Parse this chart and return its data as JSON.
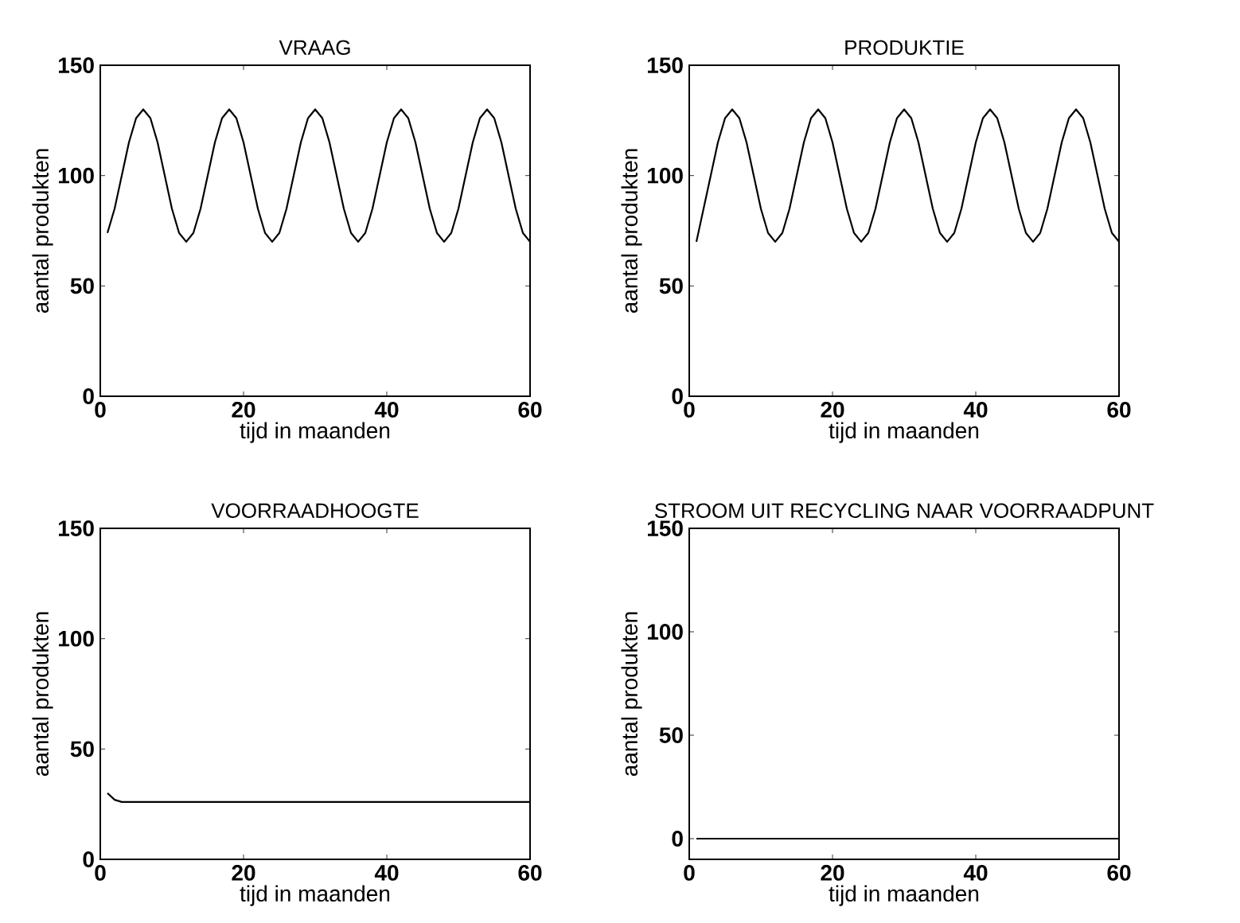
{
  "chart_data": [
    {
      "type": "line",
      "title": "VRAAG",
      "xlabel": "tijd in maanden",
      "ylabel": "aantal produkten",
      "xlim": [
        0,
        60
      ],
      "ylim": [
        0,
        150
      ],
      "xticks": [
        0,
        20,
        40,
        60
      ],
      "yticks": [
        0,
        50,
        100,
        150
      ],
      "grid": false,
      "x": [
        1,
        2,
        3,
        4,
        5,
        6,
        7,
        8,
        9,
        10,
        11,
        12,
        13,
        14,
        15,
        16,
        17,
        18,
        19,
        20,
        21,
        22,
        23,
        24,
        25,
        26,
        27,
        28,
        29,
        30,
        31,
        32,
        33,
        34,
        35,
        36,
        37,
        38,
        39,
        40,
        41,
        42,
        43,
        44,
        45,
        46,
        47,
        48,
        49,
        50,
        51,
        52,
        53,
        54,
        55,
        56,
        57,
        58,
        59,
        60
      ],
      "series": [
        {
          "color": "#000000",
          "values": [
            74,
            85,
            100,
            115,
            126,
            130,
            126,
            115,
            100,
            85,
            74,
            70,
            74,
            85,
            100,
            115,
            126,
            130,
            126,
            115,
            100,
            85,
            74,
            70,
            74,
            85,
            100,
            115,
            126,
            130,
            126,
            115,
            100,
            85,
            74,
            70,
            74,
            85,
            100,
            115,
            126,
            130,
            126,
            115,
            100,
            85,
            74,
            70,
            74,
            85,
            100,
            115,
            126,
            130,
            126,
            115,
            100,
            85,
            74,
            70
          ]
        }
      ]
    },
    {
      "type": "line",
      "title": "PRODUKTIE",
      "xlabel": "tijd in maanden",
      "ylabel": "aantal produkten",
      "xlim": [
        0,
        60
      ],
      "ylim": [
        0,
        150
      ],
      "xticks": [
        0,
        20,
        40,
        60
      ],
      "yticks": [
        0,
        50,
        100,
        150
      ],
      "grid": false,
      "x": [
        1,
        2,
        3,
        4,
        5,
        6,
        7,
        8,
        9,
        10,
        11,
        12,
        13,
        14,
        15,
        16,
        17,
        18,
        19,
        20,
        21,
        22,
        23,
        24,
        25,
        26,
        27,
        28,
        29,
        30,
        31,
        32,
        33,
        34,
        35,
        36,
        37,
        38,
        39,
        40,
        41,
        42,
        43,
        44,
        45,
        46,
        47,
        48,
        49,
        50,
        51,
        52,
        53,
        54,
        55,
        56,
        57,
        58,
        59,
        60
      ],
      "series": [
        {
          "color": "#000000",
          "values": [
            70,
            85,
            100,
            115,
            126,
            130,
            126,
            115,
            100,
            85,
            74,
            70,
            74,
            85,
            100,
            115,
            126,
            130,
            126,
            115,
            100,
            85,
            74,
            70,
            74,
            85,
            100,
            115,
            126,
            130,
            126,
            115,
            100,
            85,
            74,
            70,
            74,
            85,
            100,
            115,
            126,
            130,
            126,
            115,
            100,
            85,
            74,
            70,
            74,
            85,
            100,
            115,
            126,
            130,
            126,
            115,
            100,
            85,
            74,
            70
          ]
        }
      ]
    },
    {
      "type": "line",
      "title": "VOORRAADHOOGTE",
      "xlabel": "tijd in maanden",
      "ylabel": "aantal produkten",
      "xlim": [
        0,
        60
      ],
      "ylim": [
        0,
        150
      ],
      "xticks": [
        0,
        20,
        40,
        60
      ],
      "yticks": [
        0,
        50,
        100,
        150
      ],
      "grid": false,
      "x": [
        1,
        2,
        3,
        10,
        20,
        30,
        40,
        50,
        60
      ],
      "series": [
        {
          "color": "#000000",
          "values": [
            30,
            27,
            26,
            26,
            26,
            26,
            26,
            26,
            26
          ]
        }
      ]
    },
    {
      "type": "line",
      "title": "STROOM UIT RECYCLING NAAR VOORRAADPUNT",
      "xlabel": "tijd in maanden",
      "ylabel": "aantal produkten",
      "xlim": [
        0,
        60
      ],
      "ylim": [
        -10,
        150
      ],
      "xticks": [
        0,
        20,
        40,
        60
      ],
      "yticks": [
        0,
        50,
        100,
        150
      ],
      "grid": false,
      "x": [
        1,
        10,
        20,
        30,
        40,
        50,
        60
      ],
      "series": [
        {
          "color": "#000000",
          "values": [
            0,
            0,
            0,
            0,
            0,
            0,
            0
          ]
        }
      ]
    }
  ]
}
